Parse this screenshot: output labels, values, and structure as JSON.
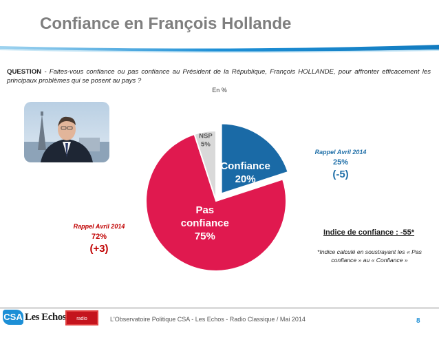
{
  "header": {
    "title": "Confiance en François Hollande"
  },
  "question": {
    "prefix": "QUESTION",
    "text": " - Faites-vous confiance ou pas confiance au Président de la République, François HOLLANDE, pour affronter efficacement les principaux problèmes qui se posent au pays ?"
  },
  "unit_label": "En %",
  "chart_data": {
    "type": "pie",
    "title": "",
    "slices": [
      {
        "label": "Confiance",
        "value": 20,
        "value_label": "20%",
        "color": "#1a6aa6"
      },
      {
        "label": "Pas confiance",
        "value": 75,
        "value_label": "75%",
        "color": "#e0194f"
      },
      {
        "label": "NSP",
        "value": 5,
        "value_label": "5%",
        "color": "#d9d9d9"
      }
    ],
    "exploded_slice": "Confiance",
    "slice_label_lines": {
      "Pas confiance": [
        "Pas",
        "confiance"
      ]
    }
  },
  "recall_left": {
    "label": "Rappel Avril 2014",
    "value": "72%",
    "delta": "(+3)"
  },
  "recall_right": {
    "label": "Rappel Avril 2014",
    "value": "25%",
    "delta": "(-5)"
  },
  "index": {
    "title": "Indice de confiance : -55*",
    "note": "*Indice calculé en soustrayant les « Pas confiance » au « Confiance »"
  },
  "footer": {
    "logo_csa": "CSA",
    "logo_echos": "Les Echos",
    "logo_radio": "radio classique",
    "text": "L'Observatoire Politique  CSA - Les Echos - Radio Classique / Mai 2014",
    "page_number": "8"
  },
  "colors": {
    "accent_blue": "#1d8fd6",
    "confiance": "#1a6aa6",
    "pas_confiance": "#e0194f",
    "nsp": "#d9d9d9"
  },
  "icons": [
    "portrait-photo",
    "csa-logo",
    "les-echos-logo",
    "radio-classique-logo"
  ]
}
